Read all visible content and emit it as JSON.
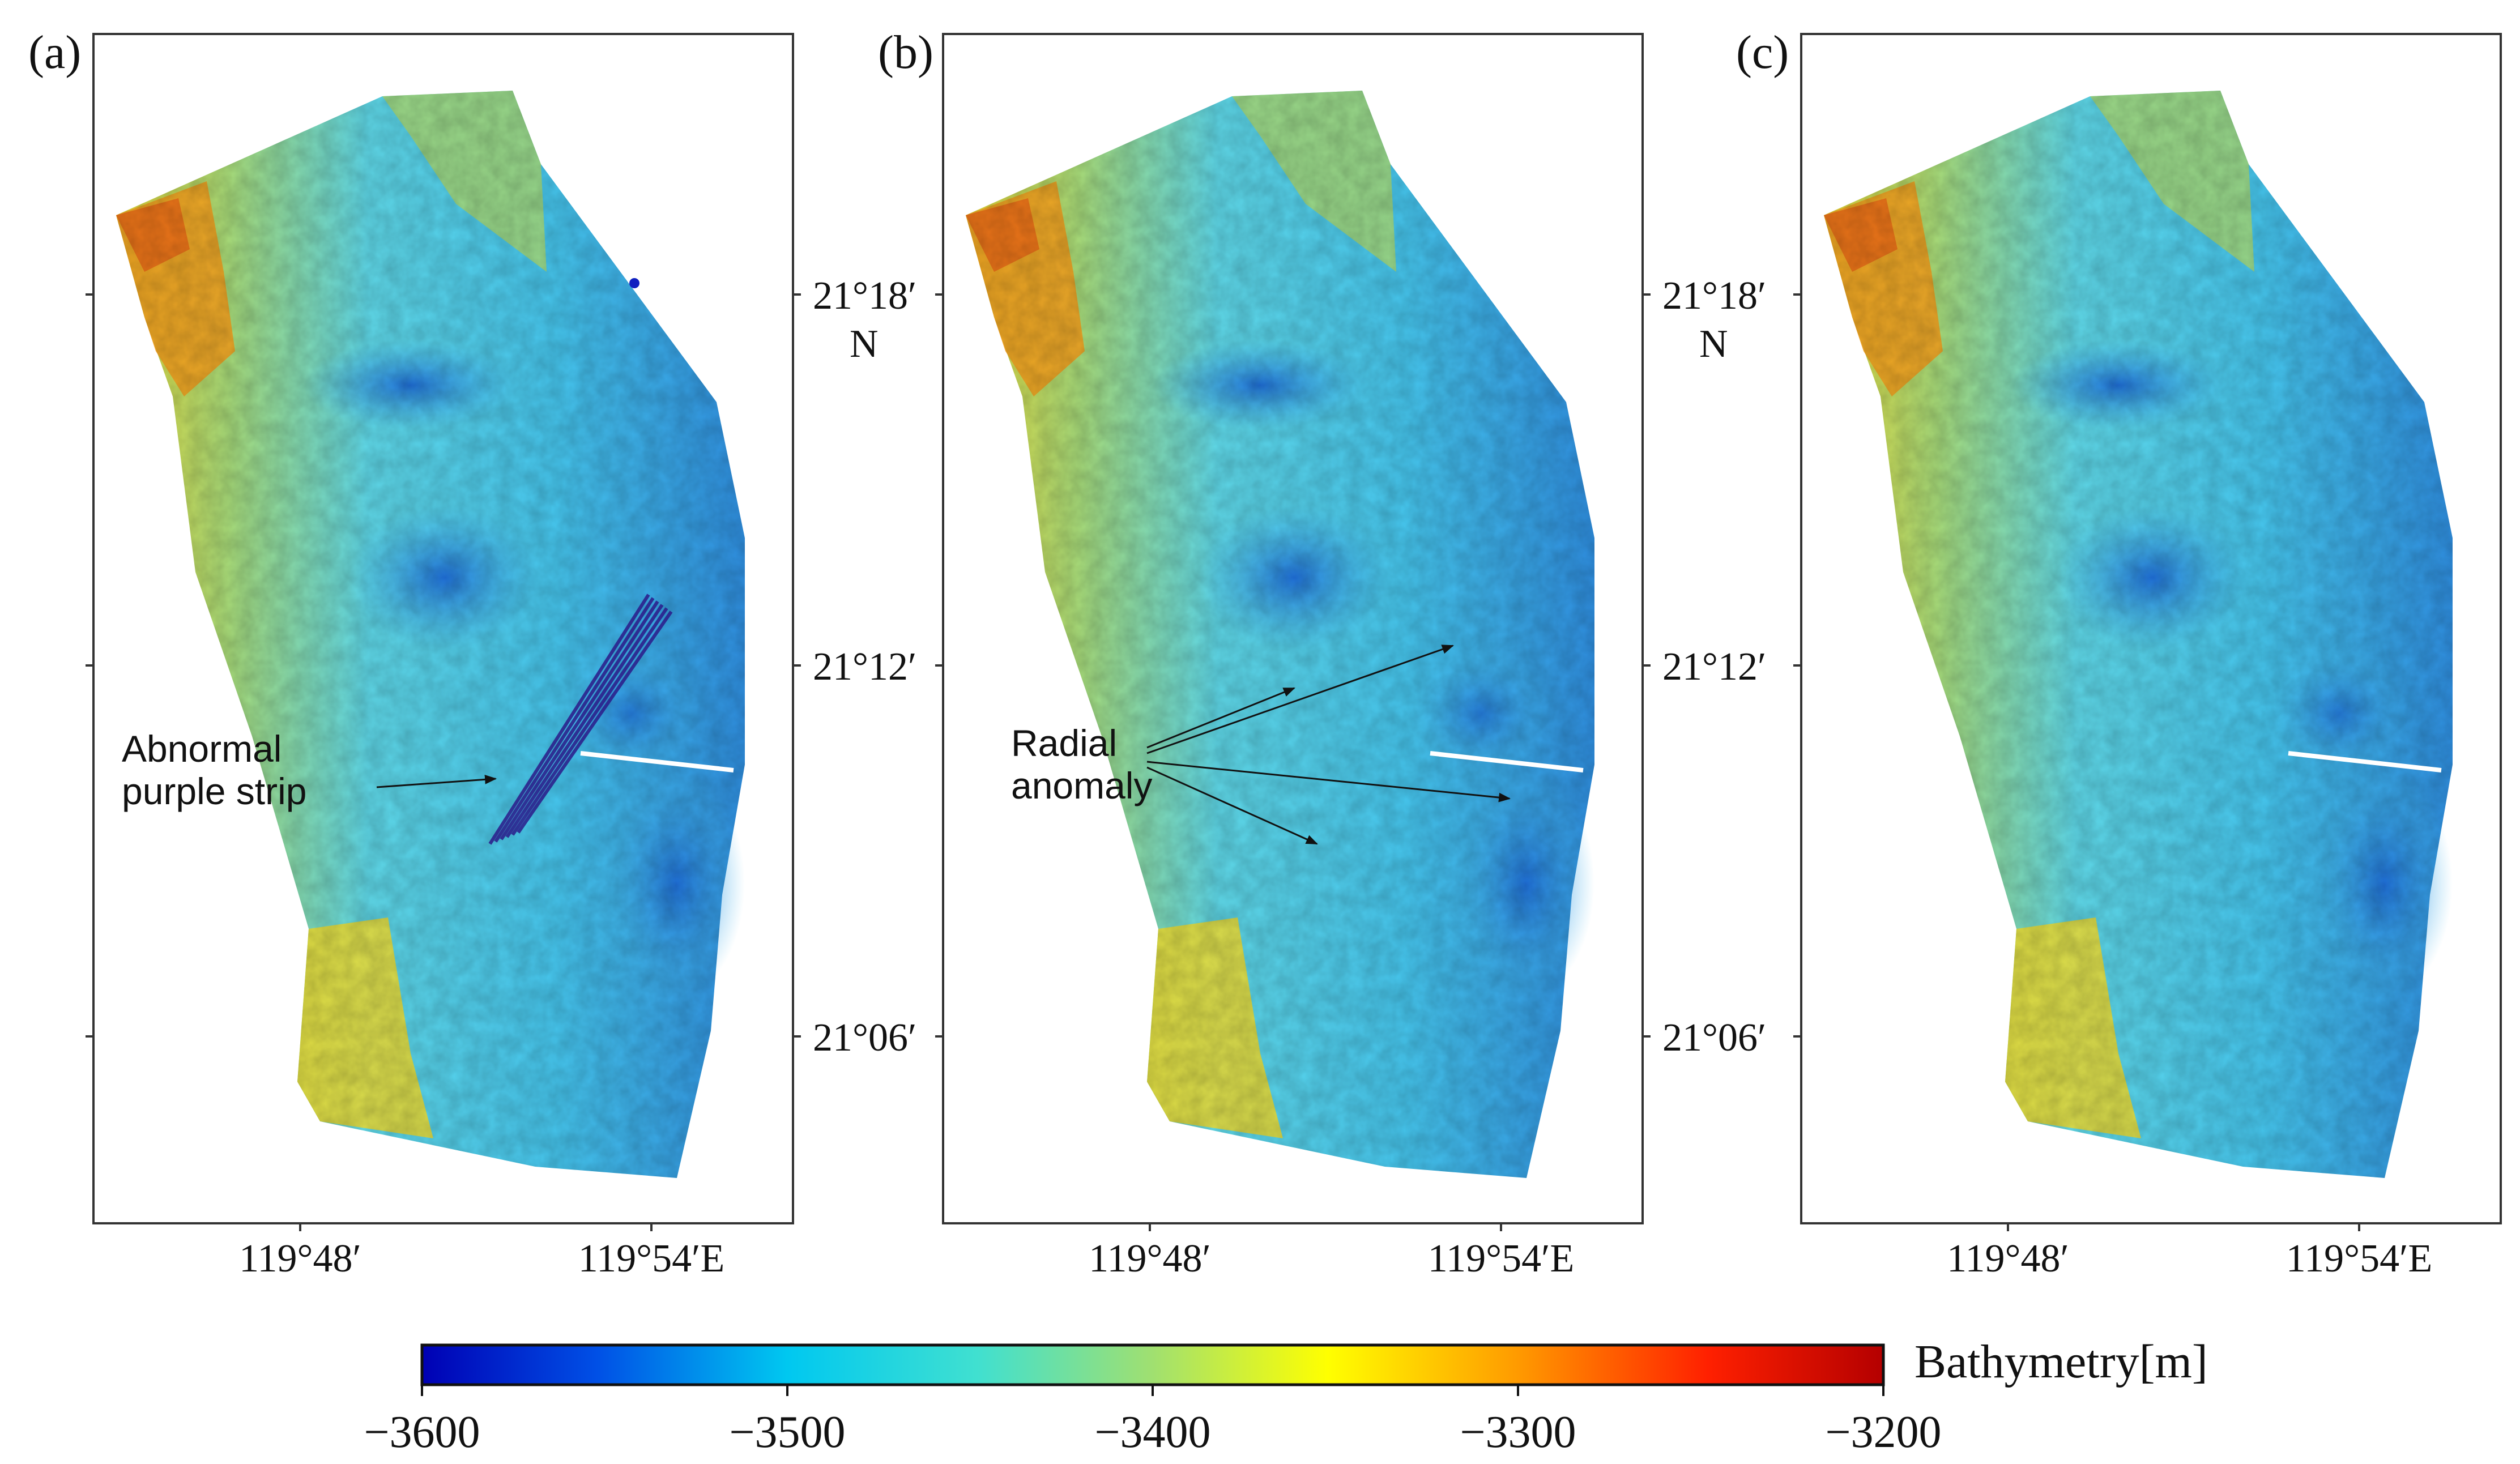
{
  "figure": {
    "panels": [
      {
        "label": "(a)",
        "annotation": {
          "lines": [
            "Abnormal",
            "purple strip"
          ]
        }
      },
      {
        "label": "(b)",
        "annotation": {
          "lines": [
            "Radial",
            "anomaly"
          ]
        }
      },
      {
        "label": "(c)"
      }
    ],
    "lat_ticks": [
      "21°18′",
      "21°12′",
      "21°06′"
    ],
    "north_label": "N",
    "lon_ticks": [
      "119°48′",
      "119°54′E"
    ]
  },
  "colorbar": {
    "title": "Bathymetry[m]",
    "min": -3600,
    "max": -3200,
    "tick_labels": [
      "−3600",
      "−3500",
      "−3400",
      "−3300",
      "−3200"
    ],
    "colors": [
      "#0000b4",
      "#0050e6",
      "#00c8f0",
      "#40e0d0",
      "#a0e070",
      "#ffff00",
      "#ff9a00",
      "#ff2000",
      "#b40000"
    ]
  }
}
